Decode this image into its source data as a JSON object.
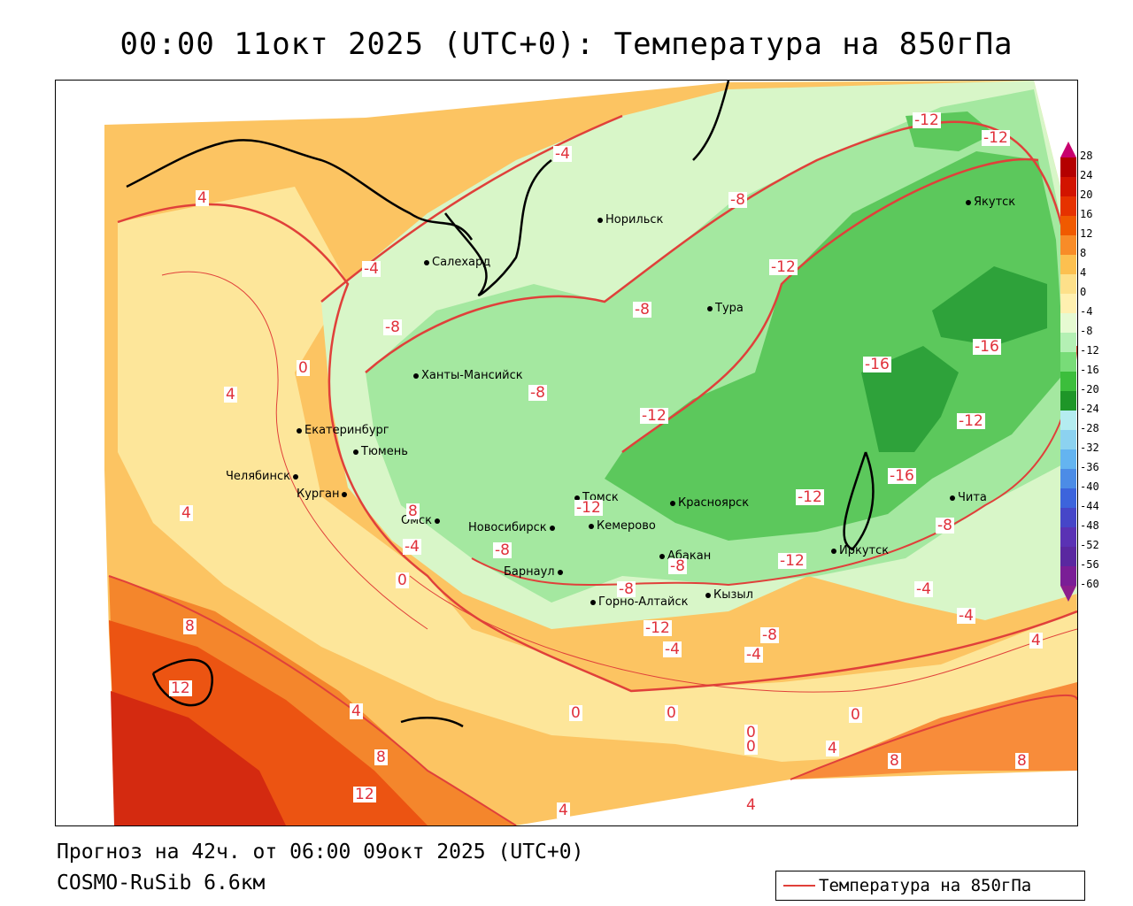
{
  "header": {
    "title": "00:00 11окт 2025 (UTC+0): Температура на 850гПа"
  },
  "footer": {
    "forecast": "Прогноз на 42ч. от 06:00 09окт 2025 (UTC+0)",
    "model": "COSMO-RuSib 6.6км"
  },
  "legend": {
    "label": "Температура на 850гПа",
    "line_color": "#e0403a"
  },
  "colorbar": {
    "labels": [
      "28",
      "24",
      "20",
      "16",
      "12",
      "8",
      "4",
      "0",
      "-4",
      "-8",
      "-12",
      "-16",
      "-20",
      "-24",
      "-28",
      "-32",
      "-36",
      "-40",
      "-44",
      "-48",
      "-52",
      "-56",
      "-60"
    ],
    "colors": [
      "#c8006e",
      "#b40000",
      "#d21400",
      "#e63200",
      "#f05a00",
      "#f88c28",
      "#fcc050",
      "#fde08a",
      "#fff0b0",
      "#e6fad2",
      "#b4f0b4",
      "#78dc78",
      "#3cbe3c",
      "#1e9628",
      "#b4ecf0",
      "#8cd2f0",
      "#64b4f0",
      "#4c8ce6",
      "#3c64dc",
      "#4646c8",
      "#5a32b4",
      "#5a28a0",
      "#7a1e96",
      "#8c1e8c"
    ]
  },
  "cities": [
    {
      "name": "Норильск"
    },
    {
      "name": "Салехард"
    },
    {
      "name": "Тура"
    },
    {
      "name": "Якутск"
    },
    {
      "name": "Ханты-Мансийск"
    },
    {
      "name": "Екатеринбург"
    },
    {
      "name": "Тюмень"
    },
    {
      "name": "Челябинск"
    },
    {
      "name": "Курган"
    },
    {
      "name": "Омск"
    },
    {
      "name": "Томск"
    },
    {
      "name": "Новосибирск"
    },
    {
      "name": "Кемерово"
    },
    {
      "name": "Красноярск"
    },
    {
      "name": "Абакан"
    },
    {
      "name": "Барнаул"
    },
    {
      "name": "Горно-Алтайск"
    },
    {
      "name": "Кызыл"
    },
    {
      "name": "Иркутск"
    },
    {
      "name": "Чита"
    }
  ],
  "contour_labels": [
    "-12",
    "-12",
    "-4",
    "4",
    "-8",
    "-12",
    "-4",
    "-8",
    "-8",
    "-16",
    "-16",
    "0",
    "-8",
    "-12",
    "-12",
    "4",
    "-16",
    "-12",
    "-12",
    "-12",
    "-8",
    "4",
    "8",
    "-4",
    "-8",
    "-8",
    "-8",
    "-12",
    "-4",
    "0",
    "-4",
    "-8",
    "-4",
    "-4",
    "8",
    "12",
    "4",
    "8",
    "0",
    "0",
    "0",
    "0",
    "0",
    "4",
    "8",
    "8",
    "12",
    "4",
    "4",
    "4"
  ]
}
